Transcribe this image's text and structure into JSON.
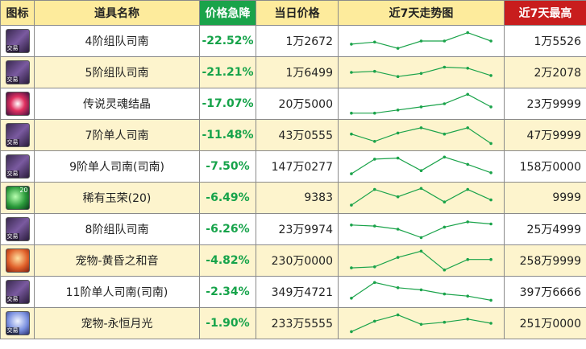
{
  "headers": {
    "icon": "图标",
    "name": "道具名称",
    "drop": "价格急降",
    "price": "当日价格",
    "trend": "近7天走势图",
    "max": "近7天最高"
  },
  "colors": {
    "trend_line": "#1aa34a",
    "drop_text": "#16a34a",
    "header_drop_bg": "#1aa34a",
    "header_max_bg": "#c81d1d",
    "header_bg": "#fdeb9c",
    "stripe_bg": "#fdf4cd"
  },
  "rows": [
    {
      "icon": "scope-icon",
      "icon_tag": "交易",
      "icon_num": "",
      "name": "4阶组队司南",
      "drop": "-22.52%",
      "price": "1万2672",
      "max": "1万5526",
      "trend": [
        0.35,
        0.45,
        0.15,
        0.5,
        0.5,
        0.9,
        0.5
      ]
    },
    {
      "icon": "scope-icon",
      "icon_tag": "交易",
      "icon_num": "",
      "name": "5阶组队司南",
      "drop": "-21.21%",
      "price": "1万6499",
      "max": "2万2078",
      "trend": [
        0.5,
        0.55,
        0.3,
        0.45,
        0.75,
        0.7,
        0.35
      ]
    },
    {
      "icon": "soul-icon",
      "icon_tag": "",
      "icon_num": "",
      "name": "传说灵魂结晶",
      "drop": "-17.07%",
      "price": "20万5000",
      "max": "23万9999",
      "trend": [
        0.05,
        0.05,
        0.2,
        0.35,
        0.5,
        0.95,
        0.35
      ]
    },
    {
      "icon": "scope-icon",
      "icon_tag": "交易",
      "icon_num": "",
      "name": "7阶单人司南",
      "drop": "-11.48%",
      "price": "43万0555",
      "max": "47万9999",
      "trend": [
        0.55,
        0.2,
        0.6,
        0.85,
        0.55,
        0.85,
        0.1
      ]
    },
    {
      "icon": "scope-icon",
      "icon_tag": "交易",
      "icon_num": "",
      "name": "9阶单人司南(司南)",
      "drop": "-7.50%",
      "price": "147万0277",
      "max": "158万0000",
      "trend": [
        0.15,
        0.85,
        0.9,
        0.3,
        0.95,
        0.6,
        0.2
      ]
    },
    {
      "icon": "jade-icon",
      "icon_tag": "",
      "icon_num": "20",
      "name": "稀有玉荣(20)",
      "drop": "-6.49%",
      "price": "9383",
      "max": "9999",
      "trend": [
        0.15,
        0.9,
        0.55,
        0.95,
        0.3,
        0.9,
        0.4
      ]
    },
    {
      "icon": "scope-icon",
      "icon_tag": "交易",
      "icon_num": "",
      "name": "8阶组队司南",
      "drop": "-6.26%",
      "price": "23万9974",
      "max": "25万4999",
      "trend": [
        0.7,
        0.65,
        0.5,
        0.1,
        0.6,
        0.85,
        0.75
      ]
    },
    {
      "icon": "pet-sunset-icon",
      "icon_tag": "",
      "icon_num": "",
      "name": "宠物-黄昏之和音",
      "drop": "-4.82%",
      "price": "230万0000",
      "max": "258万9999",
      "trend": [
        0.15,
        0.2,
        0.65,
        0.95,
        0.05,
        0.55,
        0.55
      ]
    },
    {
      "icon": "scope-icon",
      "icon_tag": "交易",
      "icon_num": "",
      "name": "11阶单人司南(司南)",
      "drop": "-2.34%",
      "price": "349万4721",
      "max": "397万6666",
      "trend": [
        0.2,
        0.95,
        0.7,
        0.6,
        0.4,
        0.3,
        0.1
      ]
    },
    {
      "icon": "pet-moon-icon",
      "icon_tag": "交易",
      "icon_num": "",
      "name": "宠物-永恒月光",
      "drop": "-1.90%",
      "price": "233万5555",
      "max": "251万0000",
      "trend": [
        0.1,
        0.6,
        0.9,
        0.45,
        0.55,
        0.7,
        0.5
      ]
    }
  ]
}
